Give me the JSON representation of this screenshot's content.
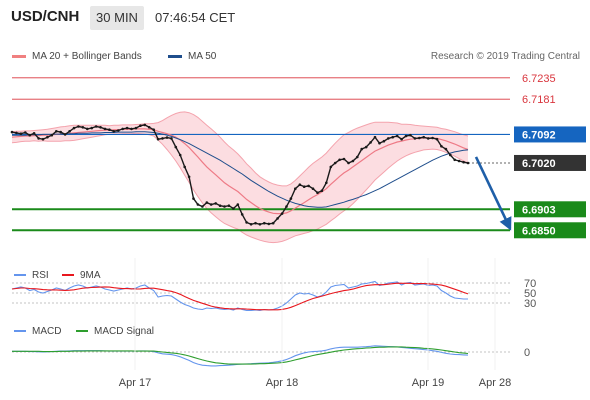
{
  "header": {
    "pair": "USD/CNH",
    "timeframe": "30 MIN",
    "time": "07:46:54 CET"
  },
  "legend": {
    "bb": {
      "label": "MA 20 + Bollinger Bands",
      "color": "#f08080"
    },
    "ma50": {
      "label": "MA 50",
      "color": "#1f4e8c"
    },
    "copyright": "Research © 2019 Trading Central"
  },
  "price_levels": [
    {
      "label": "6.7235",
      "value": 6.7235,
      "kind": "resistance",
      "color": "#d9363e"
    },
    {
      "label": "6.7181",
      "value": 6.7181,
      "kind": "resistance",
      "color": "#d9363e"
    },
    {
      "label": "6.7092",
      "value": 6.7092,
      "kind": "pivot",
      "color": "#1565c0"
    },
    {
      "label": "6.7020",
      "value": 6.702,
      "kind": "last",
      "color": "#333333"
    },
    {
      "label": "6.6903",
      "value": 6.6903,
      "kind": "support",
      "color": "#1a8a1a"
    },
    {
      "label": "6.6850",
      "value": 6.685,
      "kind": "support",
      "color": "#1a8a1a"
    }
  ],
  "rsi": {
    "label": "RSI",
    "ma_label": "9MA",
    "rsi_color": "#6495ed",
    "ma_color": "#e8171e",
    "levels": [
      "70",
      "50",
      "30"
    ]
  },
  "macd": {
    "label": "MACD",
    "signal_label": "MACD Signal",
    "macd_color": "#6495ed",
    "signal_color": "#2e9e2e",
    "zero_label": "0"
  },
  "dates": [
    "Apr 17",
    "Apr 18",
    "Apr 19",
    "Apr 28"
  ],
  "chart_data": {
    "type": "line",
    "title": "USD/CNH",
    "y_range": [
      6.678,
      6.728
    ],
    "price": [
      6.7098,
      6.7096,
      6.7094,
      6.7097,
      6.709,
      6.7095,
      6.7082,
      6.708,
      6.7085,
      6.709,
      6.71,
      6.7098,
      6.7092,
      6.71,
      6.7108,
      6.7112,
      6.711,
      6.7106,
      6.7108,
      6.7112,
      6.711,
      6.7106,
      6.7104,
      6.71,
      6.7102,
      6.7106,
      6.7108,
      6.7106,
      6.7108,
      6.7114,
      6.7116,
      6.711,
      6.7104,
      6.708,
      6.7082,
      6.7084,
      6.7082,
      6.706,
      6.704,
      6.701,
      6.6985,
      6.693,
      6.6915,
      6.691,
      6.692,
      6.6915,
      6.6918,
      6.6912,
      6.691,
      6.6912,
      6.6905,
      6.6915,
      6.689,
      6.687,
      6.6865,
      6.6868,
      6.6865,
      6.6868,
      6.6866,
      6.6868,
      6.688,
      6.6892,
      6.691,
      6.693,
      6.6955,
      6.6965,
      6.696,
      6.6962,
      6.6955,
      6.6945,
      6.695,
      6.697,
      6.701,
      6.702,
      6.7028,
      6.703,
      6.702,
      6.7025,
      6.7035,
      6.7055,
      6.706,
      6.7072,
      6.7085,
      6.707,
      6.7075,
      6.7082,
      6.7085,
      6.7088,
      6.708,
      6.7088,
      6.709,
      6.7082,
      6.7083,
      6.7085,
      6.7082,
      6.7083,
      6.708,
      6.7062,
      6.7055,
      6.704,
      6.7028,
      6.7025,
      6.7022,
      6.702
    ],
    "ma20": [
      6.7085,
      6.7086,
      6.7087,
      6.7088,
      6.7088,
      6.7089,
      6.7089,
      6.709,
      6.709,
      6.7091,
      6.7092,
      6.7093,
      6.7094,
      6.7095,
      6.7096,
      6.7097,
      6.7098,
      6.7099,
      6.71,
      6.7101,
      6.7102,
      6.7103,
      6.7103,
      6.7104,
      6.7104,
      6.7105,
      6.7105,
      6.7105,
      6.7106,
      6.7106,
      6.7106,
      6.7105,
      6.7104,
      6.71,
      6.7097,
      6.7094,
      6.709,
      6.7085,
      6.7078,
      6.7069,
      6.7059,
      6.7047,
      6.7035,
      6.7022,
      6.701,
      6.7,
      6.699,
      6.698,
      6.697,
      6.6962,
      6.6955,
      6.6948,
      6.6938,
      6.6928,
      6.692,
      6.6912,
      6.6905,
      6.69,
      6.6896,
      6.6893,
      6.6892,
      6.6892,
      6.6894,
      6.6899,
      6.6906,
      6.6913,
      6.692,
      6.6927,
      6.6934,
      6.694,
      6.6947,
      6.6955,
      6.6966,
      6.6976,
      6.6986,
      6.6995,
      6.7002,
      6.701,
      6.7018,
      6.7026,
      6.7034,
      6.7042,
      6.705,
      6.7055,
      6.706,
      6.7065,
      6.7069,
      6.7073,
      6.7075,
      6.7078,
      6.708,
      6.7081,
      6.7082,
      6.7083,
      6.7083,
      6.7083,
      6.7082,
      6.7079,
      6.7076,
      6.7072,
      6.7068,
      6.7063,
      6.7058,
      6.7054
    ],
    "bb_width": [
      0.0014,
      0.0014,
      0.0013,
      0.0013,
      0.0013,
      0.0013,
      0.0014,
      0.0014,
      0.0015,
      0.0016,
      0.0017,
      0.0018,
      0.0018,
      0.0019,
      0.0019,
      0.0018,
      0.0017,
      0.0016,
      0.0015,
      0.0014,
      0.0013,
      0.0012,
      0.0011,
      0.0011,
      0.0011,
      0.0011,
      0.0011,
      0.0011,
      0.0011,
      0.0012,
      0.0013,
      0.0014,
      0.0016,
      0.0022,
      0.003,
      0.004,
      0.005,
      0.006,
      0.007,
      0.008,
      0.0088,
      0.0095,
      0.01,
      0.0103,
      0.0105,
      0.0106,
      0.0106,
      0.0105,
      0.0103,
      0.01,
      0.0098,
      0.0095,
      0.0093,
      0.009,
      0.0087,
      0.0083,
      0.008,
      0.0078,
      0.0076,
      0.0074,
      0.0072,
      0.007,
      0.0068,
      0.0068,
      0.007,
      0.0074,
      0.0078,
      0.0082,
      0.0085,
      0.0087,
      0.0088,
      0.009,
      0.0092,
      0.0094,
      0.0095,
      0.0096,
      0.0095,
      0.0093,
      0.009,
      0.0086,
      0.0082,
      0.0078,
      0.0073,
      0.0068,
      0.0063,
      0.0058,
      0.0053,
      0.0048,
      0.0043,
      0.004,
      0.0037,
      0.0034,
      0.0032,
      0.003,
      0.0029,
      0.0028,
      0.0028,
      0.0028,
      0.0029,
      0.003,
      0.0031,
      0.0032,
      0.0033,
      0.0034
    ],
    "ma50": [
      6.709,
      6.709,
      6.709,
      6.709,
      6.7091,
      6.7091,
      6.7091,
      6.7092,
      6.7092,
      6.7092,
      6.7093,
      6.7093,
      6.7093,
      6.7094,
      6.7094,
      6.7095,
      6.7095,
      6.7095,
      6.7096,
      6.7096,
      6.7096,
      6.7097,
      6.7097,
      6.7097,
      6.7098,
      6.7098,
      6.7098,
      6.7098,
      6.7099,
      6.7099,
      6.7099,
      6.7098,
      6.7097,
      6.7095,
      6.7093,
      6.709,
      6.7087,
      6.7083,
      6.7079,
      6.7074,
      6.7069,
      6.7063,
      6.7057,
      6.7051,
      6.7045,
      6.7039,
      6.7033,
      6.7027,
      6.702,
      6.7013,
      6.7006,
      6.6999,
      6.6992,
      6.6984,
      6.6976,
      6.6969,
      6.6962,
      6.6955,
      6.6948,
      6.6942,
      6.6936,
      6.6931,
      6.6926,
      6.6922,
      6.6918,
      6.6915,
      6.6912,
      6.691,
      6.6909,
      6.6908,
      6.6908,
      6.6909,
      6.6912,
      6.6915,
      6.6918,
      6.6921,
      6.6925,
      6.6928,
      6.6932,
      6.6936,
      6.694,
      6.6945,
      6.695,
      6.6955,
      6.6961,
      6.6967,
      6.6973,
      6.6979,
      6.6985,
      6.6991,
      6.6997,
      6.7003,
      6.7009,
      6.7015,
      6.7021,
      6.7027,
      6.7032,
      6.7037,
      6.7041,
      6.7045,
      6.7048,
      6.705,
      6.7052,
      6.7053
    ],
    "rsi": [
      58,
      60,
      62,
      60,
      55,
      57,
      52,
      50,
      53,
      56,
      60,
      58,
      55,
      60,
      64,
      66,
      64,
      60,
      62,
      64,
      62,
      58,
      56,
      54,
      56,
      58,
      60,
      58,
      60,
      64,
      66,
      60,
      55,
      42,
      44,
      45,
      44,
      38,
      32,
      27,
      24,
      20,
      18,
      17,
      20,
      19,
      20,
      18,
      17,
      18,
      16,
      20,
      17,
      15,
      15,
      16,
      15,
      17,
      16,
      17,
      20,
      24,
      30,
      38,
      46,
      50,
      48,
      49,
      46,
      42,
      45,
      52,
      62,
      65,
      66,
      67,
      60,
      62,
      64,
      68,
      69,
      71,
      73,
      65,
      67,
      70,
      71,
      72,
      66,
      70,
      71,
      66,
      67,
      68,
      65,
      66,
      64,
      55,
      50,
      44,
      40,
      39,
      38,
      38
    ],
    "macd": [
      0.0003,
      0.0003,
      0.0003,
      0.0003,
      0.0002,
      0.0002,
      0.0001,
      0.0,
      0.0001,
      0.0002,
      0.0003,
      0.0004,
      0.0004,
      0.0005,
      0.0006,
      0.0006,
      0.0006,
      0.0006,
      0.0006,
      0.0006,
      0.0006,
      0.0005,
      0.0004,
      0.0004,
      0.0004,
      0.0004,
      0.0004,
      0.0004,
      0.0004,
      0.0005,
      0.0005,
      0.0004,
      0.0002,
      -0.0004,
      -0.0008,
      -0.001,
      -0.0012,
      -0.0016,
      -0.0022,
      -0.003,
      -0.0038,
      -0.0048,
      -0.0055,
      -0.006,
      -0.0062,
      -0.0063,
      -0.0063,
      -0.0062,
      -0.0061,
      -0.006,
      -0.0058,
      -0.0056,
      -0.0055,
      -0.0054,
      -0.0053,
      -0.0052,
      -0.0051,
      -0.005,
      -0.0049,
      -0.0047,
      -0.0044,
      -0.004,
      -0.0034,
      -0.0026,
      -0.0017,
      -0.001,
      -0.0004,
      0.0,
      0.0002,
      0.0003,
      0.0005,
      0.0008,
      0.0014,
      0.0018,
      0.0021,
      0.0022,
      0.0022,
      0.0022,
      0.0022,
      0.0023,
      0.0024,
      0.0026,
      0.0028,
      0.0027,
      0.0026,
      0.0025,
      0.0024,
      0.0023,
      0.0021,
      0.0019,
      0.0017,
      0.0015,
      0.0013,
      0.0011,
      0.0009,
      0.0006,
      0.0003,
      -0.0002,
      -0.0006,
      -0.0009,
      -0.0011,
      -0.0012,
      -0.0013,
      -0.0014
    ],
    "macd_signal": [
      0.0003,
      0.0003,
      0.0003,
      0.0003,
      0.0003,
      0.0003,
      0.0003,
      0.0002,
      0.0002,
      0.0002,
      0.0002,
      0.0003,
      0.0003,
      0.0003,
      0.0004,
      0.0004,
      0.0004,
      0.0005,
      0.0005,
      0.0005,
      0.0005,
      0.0005,
      0.0005,
      0.0005,
      0.0005,
      0.0005,
      0.0005,
      0.0005,
      0.0004,
      0.0004,
      0.0004,
      0.0004,
      0.0004,
      0.0002,
      0.0,
      -0.0002,
      -0.0004,
      -0.0006,
      -0.0009,
      -0.0013,
      -0.0018,
      -0.0024,
      -0.003,
      -0.0036,
      -0.0041,
      -0.0045,
      -0.0049,
      -0.0051,
      -0.0053,
      -0.0055,
      -0.0055,
      -0.0055,
      -0.0055,
      -0.0055,
      -0.0055,
      -0.0054,
      -0.0053,
      -0.0053,
      -0.0052,
      -0.0051,
      -0.005,
      -0.0048,
      -0.0045,
      -0.0041,
      -0.0036,
      -0.0031,
      -0.0026,
      -0.0021,
      -0.0016,
      -0.0012,
      -0.0008,
      -0.0005,
      -0.0001,
      0.0003,
      0.0006,
      0.0009,
      0.0011,
      0.0013,
      0.0015,
      0.0016,
      0.0018,
      0.0019,
      0.0021,
      0.0022,
      0.0022,
      0.0023,
      0.0023,
      0.0023,
      0.0023,
      0.0022,
      0.0021,
      0.002,
      0.0019,
      0.0017,
      0.0016,
      0.0014,
      0.0012,
      0.0009,
      0.0006,
      0.0003,
      0.0,
      -0.0003,
      -0.0005,
      -0.0007
    ],
    "forecast_arrow": {
      "from_value": 6.702,
      "to_value": 6.685
    }
  }
}
